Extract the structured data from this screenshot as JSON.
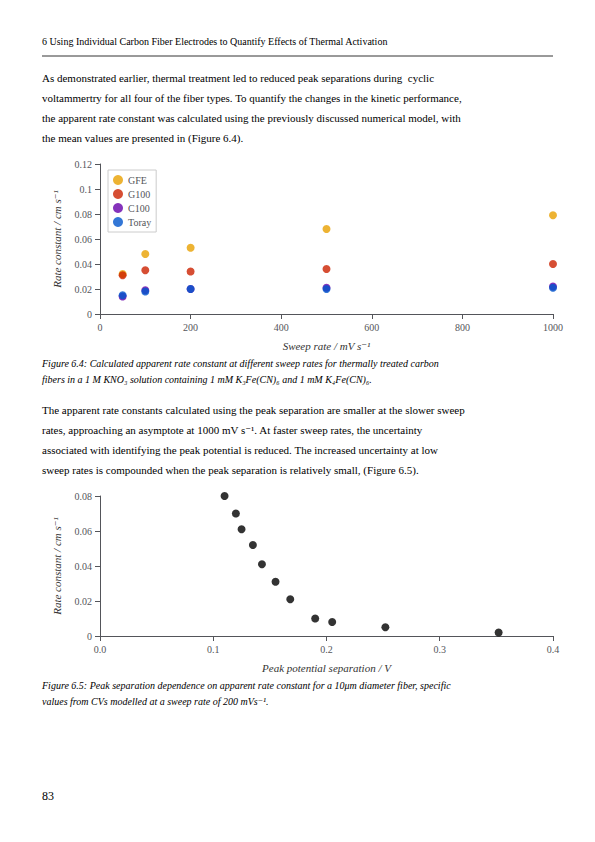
{
  "page_title": "6 Using Individual Carbon Fiber Electrodes to Quantify Effects of Thermal Activation",
  "page_number": "83",
  "chart_data": [
    {
      "type": "scatter",
      "text_before": [
        "As demonstrated earlier, thermal treatment led to reduced peak separations during  cyclic",
        "voltammertry for all four of the fiber types. To quantify the changes in the kinetic performance,",
        "the apparent rate constant was calculated using the previously discussed numerical model, with",
        "the mean values are presented in (Figure 6.4)."
      ],
      "caption": [
        "Figure 6.4: Calculated apparent rate constant at different sweep rates for thermally treated carbon",
        "fibers in a 1 M KNO₃ solution containing 1 mM K₃Fe(CN)₆ and 1 mM K₄Fe(CN)₆."
      ],
      "xlabel": "Sweep rate / mV s⁻¹",
      "ylabel": "Rate constant / cm s⁻¹",
      "xlim": [
        0,
        1000
      ],
      "ylim": [
        0,
        0.12
      ],
      "xticks": [
        0,
        200,
        400,
        600,
        800,
        1000
      ],
      "yticks": [
        0,
        0.02,
        0.04,
        0.06,
        0.08,
        0.1,
        0.12
      ],
      "series": [
        {
          "name": "GFE",
          "color": "#E8A000",
          "x": [
            50,
            100,
            200,
            500,
            1000
          ],
          "values": [
            0.032,
            0.048,
            0.053,
            0.068,
            0.079
          ]
        },
        {
          "name": "G100",
          "color": "#CC2200",
          "x": [
            50,
            100,
            200,
            500,
            1000
          ],
          "values": [
            0.031,
            0.035,
            0.034,
            0.036,
            0.04
          ]
        },
        {
          "name": "C100",
          "color": "#6600AA",
          "x": [
            50,
            100,
            200,
            500,
            1000
          ],
          "values": [
            0.014,
            0.019,
            0.02,
            0.021,
            0.022
          ]
        },
        {
          "name": "Toray",
          "color": "#0055CC",
          "x": [
            50,
            100,
            200,
            500,
            1000
          ],
          "values": [
            0.015,
            0.018,
            0.02,
            0.02,
            0.021
          ]
        }
      ],
      "legend": "upper left",
      "grid": false
    },
    {
      "type": "scatter",
      "text_before": [
        "The apparent rate constants calculated using the peak separation are smaller at the slower sweep",
        "rates, approaching an asymptote at 1000 mV s⁻¹. At faster sweep rates, the uncertainty",
        "associated with identifying the peak potential is reduced. The increased uncertainty at low",
        "sweep rates is compounded when the peak separation is relatively small, (Figure 6.5)."
      ],
      "caption": [
        "Figure 6.5: Peak separation dependence on apparent rate constant for a 10μm diameter fiber, specific",
        "values from CVs modelled at a sweep rate of 200 mVs⁻¹."
      ],
      "xlabel": "Peak potential separation / V",
      "ylabel": "Rate constant / cm s⁻¹",
      "xlim": [
        0,
        0.4
      ],
      "ylim": [
        0,
        0.08
      ],
      "xticks": [
        {
          "value": 0,
          "label": "0.0"
        },
        0.1,
        0.2,
        0.3,
        0.4
      ],
      "yticks": [
        0,
        0.02,
        0.04,
        0.06,
        0.08
      ],
      "x": [
        0.11,
        0.12,
        0.125,
        0.135,
        0.143,
        0.155,
        0.168,
        0.19,
        0.205,
        0.252,
        0.352
      ],
      "values": [
        0.08,
        0.07,
        0.061,
        0.052,
        0.041,
        0.031,
        0.021,
        0.01,
        0.008,
        0.005,
        0.002
      ],
      "color": "#000000",
      "grid": false
    }
  ]
}
